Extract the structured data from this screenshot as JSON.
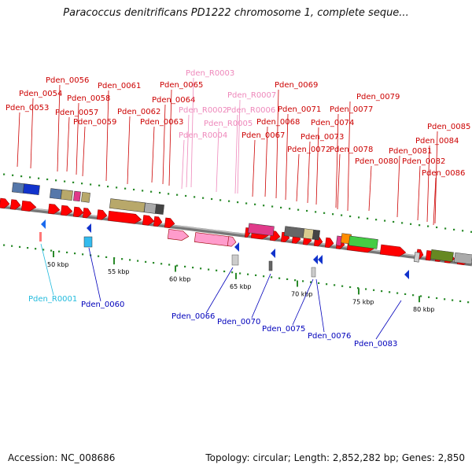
{
  "title": "Paracoccus denitrificans PD1222 chromosome 1, complete seque...",
  "footer": {
    "accession": "Accession: NC_008686",
    "topology": "Topology: circular; Length: 2,852,282 bp; Genes: 2,850"
  },
  "colors": {
    "top_label": "#cc0000",
    "rna_label": "#ee88bb",
    "bottom_label": "#0000bb",
    "cyan_label": "#22bbdd",
    "arrow_red": "#ff0000",
    "backbone": "#777777"
  },
  "ruler_labels": [
    "50 kbp",
    "55 kbp",
    "60 kbp",
    "65 kbp",
    "70 kbp",
    "75 kbp",
    "80 kbp"
  ],
  "top_labels": [
    "Pden_0053",
    "Pden_0054",
    "Pden_0056",
    "Pden_0057",
    "Pden_0058",
    "Pden_0059",
    "Pden_0061",
    "Pden_0062",
    "Pden_0063",
    "Pden_0064",
    "Pden_0065",
    "Pden_R0003",
    "Pden_R0002",
    "Pden_R0004",
    "Pden_R0007",
    "Pden_R0006",
    "Pden_R0005",
    "Pden_0067",
    "Pden_0068",
    "Pden_0069",
    "Pden_0071",
    "Pden_0072",
    "Pden_0073",
    "Pden_0074",
    "Pden_0077",
    "Pden_0078",
    "Pden_0079",
    "Pden_0080",
    "Pden_0081",
    "Pden_0082",
    "Pden_0084",
    "Pden_0085",
    "Pden_0086"
  ],
  "bottom_labels": [
    "Pden_R0001",
    "Pden_0060",
    "Pden_0066",
    "Pden_0070",
    "Pden_0075",
    "Pden_0076",
    "Pden_0083"
  ]
}
